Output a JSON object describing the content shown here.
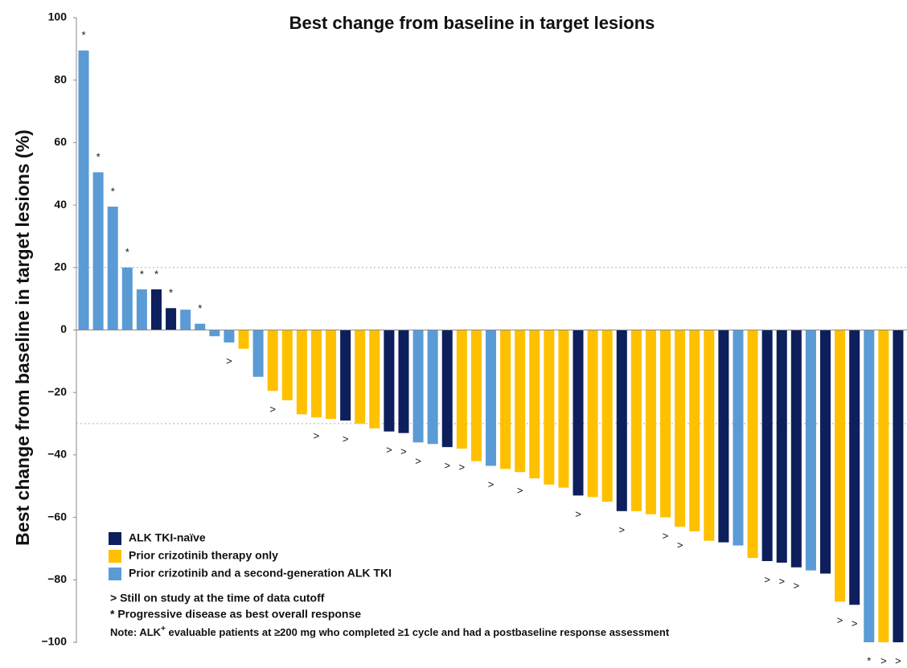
{
  "chart_data": {
    "type": "waterfall",
    "title": "Best change from baseline in target lesions",
    "y_label": "Best change from baseline in target lesions (%)",
    "ylim": [
      -100,
      100
    ],
    "yticks": [
      {
        "value": -100,
        "label": "−100"
      },
      {
        "value": -80,
        "label": "−80"
      },
      {
        "value": -60,
        "label": "−60"
      },
      {
        "value": -40,
        "label": "−40"
      },
      {
        "value": -20,
        "label": "−20"
      },
      0,
      20,
      40,
      60,
      80,
      100
    ],
    "reference_lines": [
      20,
      -30
    ],
    "values": [
      89.5,
      50.5,
      39.5,
      20,
      13,
      13,
      7,
      6.5,
      2,
      -2,
      -4,
      -6,
      -15,
      -19.5,
      -22.5,
      -27,
      -28,
      -28.5,
      -29,
      -30,
      -31.5,
      -32.5,
      -33,
      -36,
      -36.5,
      -37.5,
      -38,
      -42,
      -43.5,
      -44.5,
      -45.5,
      -47.5,
      -49.5,
      -50.5,
      -53,
      -53.5,
      -55,
      -58,
      -58,
      -59,
      -60,
      -63,
      -64.5,
      -67.5,
      -68,
      -69,
      -73,
      -74,
      -74.5,
      -76,
      -77,
      -78,
      -87,
      -88,
      -100,
      -100,
      -100
    ],
    "colors": [
      "#5b9bd5",
      "#5b9bd5",
      "#5b9bd5",
      "#5b9bd5",
      "#5b9bd5",
      "#0d1f5c",
      "#0d1f5c",
      "#5b9bd5",
      "#5b9bd5",
      "#5b9bd5",
      "#5b9bd5",
      "#ffc000",
      "#5b9bd5",
      "#ffc000",
      "#ffc000",
      "#ffc000",
      "#ffc000",
      "#ffc000",
      "#0d1f5c",
      "#ffc000",
      "#ffc000",
      "#0d1f5c",
      "#0d1f5c",
      "#5b9bd5",
      "#5b9bd5",
      "#0d1f5c",
      "#ffc000",
      "#ffc000",
      "#5b9bd5",
      "#ffc000",
      "#ffc000",
      "#ffc000",
      "#ffc000",
      "#ffc000",
      "#0d1f5c",
      "#ffc000",
      "#ffc000",
      "#0d1f5c",
      "#ffc000",
      "#ffc000",
      "#ffc000",
      "#ffc000",
      "#ffc000",
      "#ffc000",
      "#0d1f5c",
      "#5b9bd5",
      "#ffc000",
      "#0d1f5c",
      "#0d1f5c",
      "#0d1f5c",
      "#5b9bd5",
      "#0d1f5c",
      "#ffc000",
      "#0d1f5c",
      "#5b9bd5",
      "#ffc000",
      "#0d1f5c"
    ],
    "markers": [
      "*",
      "*",
      "*",
      "*",
      "*",
      "*",
      "*",
      null,
      "*",
      null,
      ">",
      null,
      null,
      ">",
      null,
      null,
      ">",
      null,
      ">",
      null,
      null,
      ">",
      ">",
      ">",
      null,
      ">",
      ">",
      null,
      ">",
      null,
      ">",
      null,
      null,
      null,
      ">",
      null,
      null,
      ">",
      null,
      null,
      ">",
      ">",
      null,
      null,
      null,
      null,
      null,
      ">",
      ">",
      ">",
      null,
      null,
      ">",
      ">",
      "*",
      ">",
      ">"
    ],
    "legend": [
      {
        "name": "ALK TKI-naïve",
        "color": "#0d1f5c"
      },
      {
        "name": "Prior crizotinib therapy only",
        "color": "#ffc000"
      },
      {
        "name": "Prior crizotinib and a second-generation ALK TKI",
        "color": "#5b9bd5"
      }
    ],
    "notes": [
      "> Still on study at the time of data cutoff",
      "* Progressive disease as best overall response"
    ],
    "footnote": [
      "Note: ALK",
      "+",
      " evaluable patients at ≥200 mg who completed ≥1 cycle and had a postbaseline response assessment"
    ]
  }
}
